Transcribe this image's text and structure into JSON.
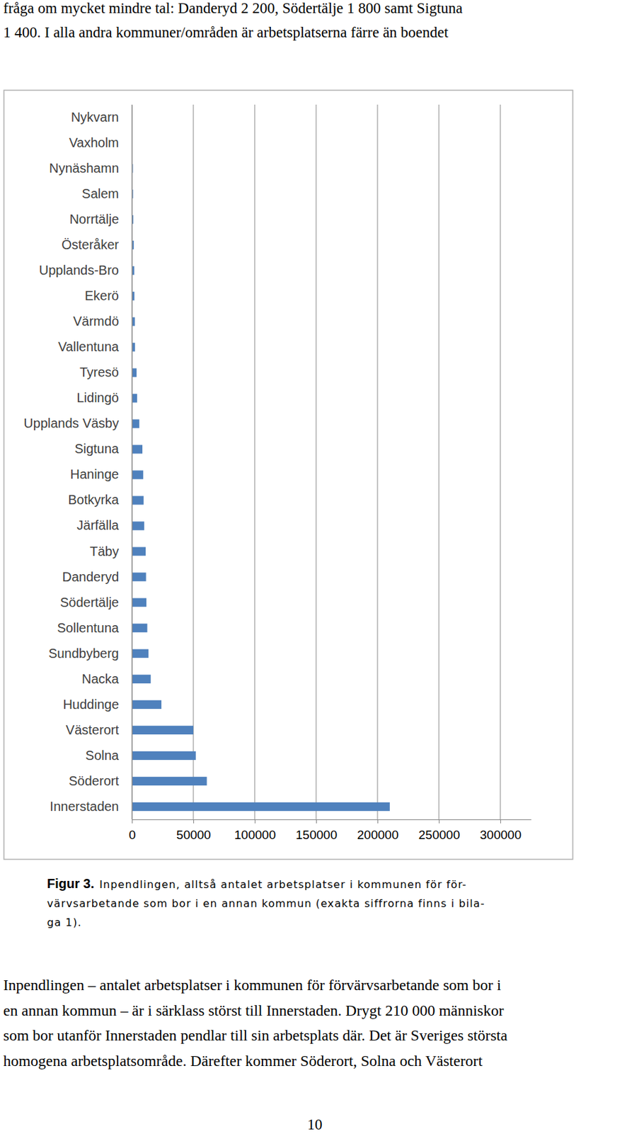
{
  "page": {
    "text_above": [
      "fråga om mycket mindre tal: Danderyd 2 200, Södertälje 1 800 samt Sigtuna",
      "1 400. I alla andra kommuner/områden är arbetsplatserna färre än boendet"
    ],
    "caption": {
      "label": "Figur 3.",
      "lines": [
        "Inpendlingen, alltså antalet arbetsplatser i kommunen för för-",
        "värvsarbetande som bor i en annan kommun (exakta siffrorna finns i bila-",
        "ga 1)."
      ]
    },
    "body": [
      "Inpendlingen – antalet arbetsplatser i kommunen för förvärvsarbetande som bor i",
      "en annan kommun – är i särklass störst till Innerstaden. Drygt 210 000 människor",
      "som bor utanför Innerstaden pendlar till sin arbetsplats där. Det är Sveriges största",
      "homogena arbetsplatsområde. Därefter kommer Söderort, Solna och Västerort"
    ],
    "page_number": "10"
  },
  "chart_data": {
    "type": "bar",
    "orientation": "horizontal",
    "categories": [
      "Nykvarn",
      "Vaxholm",
      "Nynäshamn",
      "Salem",
      "Norrtälje",
      "Österåker",
      "Upplands-Bro",
      "Ekerö",
      "Värmdö",
      "Vallentuna",
      "Tyresö",
      "Lidingö",
      "Upplands Väsby",
      "Sigtuna",
      "Haninge",
      "Botkyrka",
      "Järfälla",
      "Täby",
      "Danderyd",
      "Södertälje",
      "Sollentuna",
      "Sundbyberg",
      "Nacka",
      "Huddinge",
      "Västerort",
      "Solna",
      "Söderort",
      "Innerstaden"
    ],
    "values": [
      400,
      500,
      800,
      900,
      1100,
      1500,
      1900,
      2000,
      2400,
      2500,
      3800,
      4200,
      6000,
      8500,
      9200,
      9500,
      10000,
      11200,
      11500,
      11800,
      12500,
      13500,
      15300,
      24000,
      50000,
      52000,
      61000,
      210000
    ],
    "color": "#4f81bd",
    "xlim": [
      0,
      325000
    ],
    "xticks": [
      0,
      50000,
      100000,
      150000,
      200000,
      250000,
      300000
    ],
    "grid": true
  }
}
